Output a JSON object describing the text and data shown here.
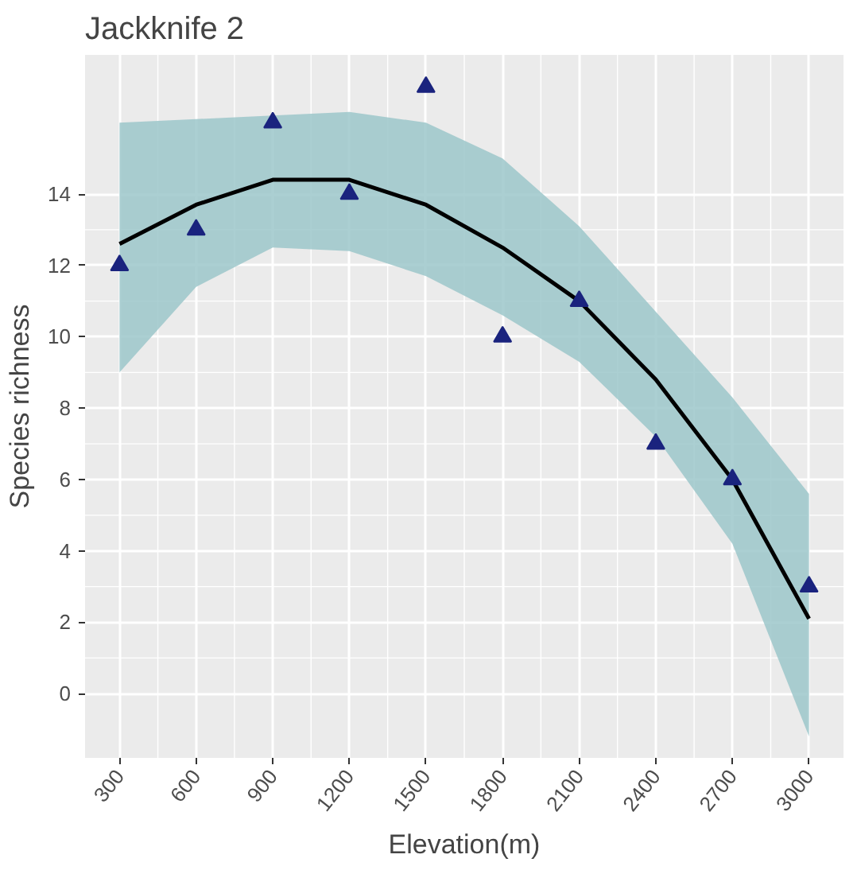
{
  "chart_data": {
    "type": "scatter",
    "title": "Jackknife 2",
    "xlabel": "Elevation(m)",
    "ylabel": "Species richness",
    "xlim": [
      165,
      3135
    ],
    "ylim": [
      -1.8,
      17.9
    ],
    "xticks": [
      300,
      600,
      900,
      1200,
      1500,
      1800,
      2100,
      2400,
      2700,
      3000
    ],
    "yticks": [
      0,
      2,
      4,
      6,
      8,
      10,
      12,
      14
    ],
    "grid": true,
    "series": [
      {
        "type": "line",
        "marker": "none",
        "color": "#000000",
        "x": [
          300,
          600,
          900,
          1200,
          1500,
          1800,
          2100,
          2400,
          2700,
          3000
        ],
        "values": [
          12.6,
          13.7,
          14.4,
          14.4,
          13.7,
          12.5,
          11.0,
          8.8,
          6.0,
          2.1
        ],
        "lower": [
          9.0,
          11.4,
          12.5,
          12.4,
          11.7,
          10.6,
          9.3,
          7.2,
          4.2,
          -1.2
        ],
        "upper": [
          16.0,
          16.1,
          16.2,
          16.3,
          16.0,
          15.0,
          13.1,
          10.7,
          8.3,
          5.6
        ]
      },
      {
        "marker": "triangle",
        "color": "#1a237e",
        "x": [
          300,
          600,
          900,
          1200,
          1500,
          1800,
          2100,
          2400,
          2700,
          3000
        ],
        "values": [
          12,
          13,
          16,
          14,
          17,
          10,
          11,
          7,
          6,
          3
        ]
      }
    ]
  }
}
